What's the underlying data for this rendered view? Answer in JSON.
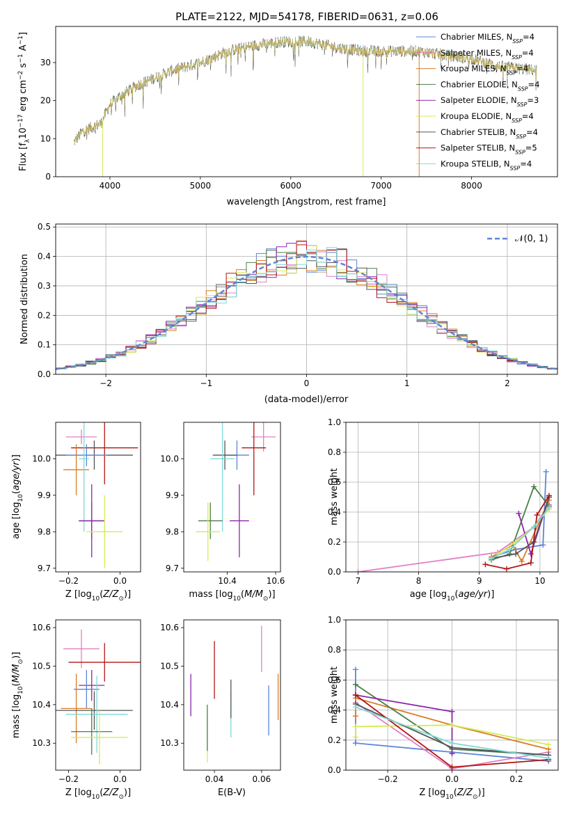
{
  "title": "PLATE=2122, MJD=54178, FIBERID=0631, z=0.06",
  "colors": {
    "Chabrier MILES": "#5b85d8",
    "Salpeter MILES": "#e07fc4",
    "Kroupa MILES": "#d97b26",
    "Chabrier ELODIE": "#4a7d49",
    "Salpeter ELODIE": "#8e24aa",
    "Kroupa ELODIE": "#d6ea54",
    "Chabrier STELIB": "#555555",
    "Salpeter STELIB": "#b21515",
    "Kroupa STELIB": "#7fd8d8",
    "normal": "#5b85d8"
  },
  "legend_ssp": [
    {
      "name": "Chabrier MILES",
      "n": "4"
    },
    {
      "name": "Salpeter MILES",
      "n": "4"
    },
    {
      "name": "Kroupa MILES",
      "n": "4"
    },
    {
      "name": "Chabrier ELODIE",
      "n": "4"
    },
    {
      "name": "Salpeter ELODIE",
      "n": "3"
    },
    {
      "name": "Kroupa ELODIE",
      "n": "4"
    },
    {
      "name": "Chabrier STELIB",
      "n": "4"
    },
    {
      "name": "Salpeter STELIB",
      "n": "5"
    },
    {
      "name": "Kroupa STELIB",
      "n": "4"
    }
  ],
  "legend_nssp_prefix": "N",
  "legend_nssp_sub": "SSP",
  "legend_normal": "𝒩(0, 1)",
  "chart_data": [
    {
      "id": "spectrum",
      "type": "line",
      "xlabel": "wavelength [Angstrom, rest frame]",
      "ylabel": "Flux [fλ10⁻¹⁷ erg cm⁻² s⁻¹ A⁻¹]",
      "xlim": [
        3400,
        8950
      ],
      "ylim": [
        0,
        39.5
      ],
      "xticks": [
        4000,
        5000,
        6000,
        7000,
        8000
      ],
      "yticks": [
        0,
        10,
        20,
        30
      ],
      "grid": false,
      "legend": "right",
      "continuum": [
        [
          3600,
          9
        ],
        [
          3700,
          12
        ],
        [
          3800,
          13
        ],
        [
          3900,
          14
        ],
        [
          4000,
          19
        ],
        [
          4100,
          21
        ],
        [
          4300,
          24
        ],
        [
          4500,
          26
        ],
        [
          4700,
          28
        ],
        [
          5000,
          30
        ],
        [
          5300,
          33
        ],
        [
          5600,
          34.5
        ],
        [
          5900,
          35.5
        ],
        [
          6200,
          35.5
        ],
        [
          6500,
          34
        ],
        [
          6800,
          33
        ],
        [
          7100,
          33
        ],
        [
          7400,
          33
        ],
        [
          7700,
          32
        ],
        [
          8000,
          31
        ],
        [
          8300,
          29
        ],
        [
          8700,
          28
        ]
      ],
      "spikes": [
        {
          "x": 3920,
          "y": 0
        },
        {
          "x": 6800,
          "y": 0
        },
        {
          "x": 7420,
          "y": 0
        }
      ]
    },
    {
      "id": "residuals",
      "type": "histogram",
      "xlabel": "(data-model)/error",
      "ylabel": "Normed distribution",
      "xlim": [
        -2.5,
        2.5
      ],
      "ylim": [
        0,
        0.51
      ],
      "xticks": [
        -2,
        -1,
        0,
        1,
        2
      ],
      "yticks": [
        0.0,
        0.1,
        0.2,
        0.3,
        0.4,
        0.5
      ],
      "grid": true,
      "legend": "top-right",
      "bin_width": 0.1
    },
    {
      "id": "age-vs-Z",
      "type": "errorbar",
      "xlabel": "Z [log10(Z/Z⊙)]",
      "ylabel": "age [log10(age/yr)]",
      "xlim": [
        -0.25,
        0.08
      ],
      "ylim": [
        9.69,
        10.1
      ],
      "xticks": [
        -0.2,
        0.0
      ],
      "yticks": [
        9.7,
        9.8,
        9.9,
        10.0
      ],
      "points": [
        {
          "s": "Salpeter MILES",
          "x": -0.15,
          "xe": 0.06,
          "y": 10.06,
          "ye": 0.02
        },
        {
          "s": "Salpeter STELIB",
          "x": -0.06,
          "xe": 0.13,
          "y": 10.03,
          "ye": 0.1
        },
        {
          "s": "Chabrier STELIB",
          "x": -0.1,
          "xe": 0.15,
          "y": 10.01,
          "ye": 0.04
        },
        {
          "s": "Chabrier MILES",
          "x": -0.13,
          "xe": 0.08,
          "y": 10.01,
          "ye": 0.03
        },
        {
          "s": "Kroupa MILES",
          "x": -0.17,
          "xe": 0.05,
          "y": 9.97,
          "ye": 0.07
        },
        {
          "s": "Kroupa STELIB",
          "x": -0.14,
          "xe": 0.02,
          "y": 10.0,
          "ye": 0.2
        },
        {
          "s": "Chabrier ELODIE",
          "x": -0.11,
          "xe": 0.05,
          "y": 9.83,
          "ye": 0.05
        },
        {
          "s": "Salpeter ELODIE",
          "x": -0.11,
          "xe": 0.05,
          "y": 9.83,
          "ye": 0.1
        },
        {
          "s": "Kroupa ELODIE",
          "x": -0.06,
          "xe": 0.07,
          "y": 9.8,
          "ye": 0.1
        }
      ]
    },
    {
      "id": "age-vs-mass",
      "type": "errorbar",
      "xlabel": "mass [log10(M/M⊙)]",
      "ylabel": "",
      "xlim": [
        10.22,
        10.62
      ],
      "ylim": [
        9.69,
        10.1
      ],
      "xticks": [
        10.4,
        10.6
      ],
      "yticks": [
        9.7,
        9.8,
        9.9,
        10.0
      ],
      "points": [
        {
          "s": "Salpeter MILES",
          "x": 10.55,
          "xe": 0.05,
          "y": 10.06,
          "ye": 0.04
        },
        {
          "s": "Salpeter STELIB",
          "x": 10.51,
          "xe": 0.05,
          "y": 10.03,
          "ye": 0.13
        },
        {
          "s": "Chabrier MILES",
          "x": 10.44,
          "xe": 0.05,
          "y": 10.01,
          "ye": 0.04
        },
        {
          "s": "Chabrier STELIB",
          "x": 10.39,
          "xe": 0.05,
          "y": 10.01,
          "ye": 0.04
        },
        {
          "s": "Kroupa STELIB",
          "x": 10.38,
          "xe": 0.05,
          "y": 10.0,
          "ye": 0.2
        },
        {
          "s": "Chabrier ELODIE",
          "x": 10.33,
          "xe": 0.05,
          "y": 9.83,
          "ye": 0.05
        },
        {
          "s": "Salpeter ELODIE",
          "x": 10.45,
          "xe": 0.04,
          "y": 9.83,
          "ye": 0.1
        },
        {
          "s": "Kroupa ELODIE",
          "x": 10.32,
          "xe": 0.05,
          "y": 9.8,
          "ye": 0.08
        }
      ]
    },
    {
      "id": "weight-vs-age",
      "type": "line",
      "xlabel": "age [log10(age/yr)]",
      "ylabel": "mass weight",
      "xlim": [
        6.8,
        10.3
      ],
      "ylim": [
        0,
        1
      ],
      "xticks": [
        7,
        8,
        9,
        10
      ],
      "yticks": [
        0.0,
        0.2,
        0.4,
        0.6,
        0.8,
        1.0
      ],
      "grid": true,
      "series": [
        {
          "s": "Salpeter MILES",
          "x": [
            7.0,
            9.3,
            9.9,
            10.15
          ],
          "y": [
            0.0,
            0.13,
            0.3,
            0.45
          ]
        },
        {
          "s": "Chabrier MILES",
          "x": [
            9.2,
            9.6,
            10.05,
            10.1
          ],
          "y": [
            0.1,
            0.15,
            0.18,
            0.67
          ]
        },
        {
          "s": "Kroupa MILES",
          "x": [
            9.2,
            9.55,
            9.7,
            10.15
          ],
          "y": [
            0.1,
            0.18,
            0.07,
            0.48
          ]
        },
        {
          "s": "Chabrier ELODIE",
          "x": [
            9.2,
            9.5,
            9.9,
            10.15
          ],
          "y": [
            0.08,
            0.12,
            0.57,
            0.44
          ]
        },
        {
          "s": "Salpeter ELODIE",
          "x": [
            9.65,
            9.85,
            10.15
          ],
          "y": [
            0.39,
            0.12,
            0.5
          ]
        },
        {
          "s": "Kroupa ELODIE",
          "x": [
            9.3,
            9.6,
            9.9,
            10.15
          ],
          "y": [
            0.12,
            0.2,
            0.3,
            0.42
          ]
        },
        {
          "s": "Chabrier STELIB",
          "x": [
            9.2,
            9.6,
            9.9,
            10.15
          ],
          "y": [
            0.09,
            0.12,
            0.2,
            0.5
          ]
        },
        {
          "s": "Salpeter STELIB",
          "x": [
            9.1,
            9.45,
            9.85,
            9.95,
            10.15
          ],
          "y": [
            0.05,
            0.02,
            0.06,
            0.38,
            0.51
          ]
        },
        {
          "s": "Kroupa STELIB",
          "x": [
            9.2,
            9.5,
            9.9,
            10.15
          ],
          "y": [
            0.09,
            0.15,
            0.3,
            0.43
          ]
        }
      ]
    },
    {
      "id": "mass-vs-Z",
      "type": "errorbar",
      "xlabel": "Z [log10(Z/Z⊙)]",
      "ylabel": "mass [log10(M/M⊙)]",
      "xlim": [
        -0.25,
        0.08
      ],
      "ylim": [
        10.23,
        10.62
      ],
      "xticks": [
        -0.2,
        0.0
      ],
      "yticks": [
        10.3,
        10.4,
        10.5,
        10.6
      ],
      "points": [
        {
          "s": "Salpeter MILES",
          "x": -0.15,
          "xe": 0.07,
          "y": 10.545,
          "ye": 0.05
        },
        {
          "s": "Salpeter STELIB",
          "x": -0.06,
          "xe": 0.14,
          "y": 10.51,
          "ye": 0.05
        },
        {
          "s": "Salpeter ELODIE",
          "x": -0.11,
          "xe": 0.05,
          "y": 10.45,
          "ye": 0.04
        },
        {
          "s": "Chabrier MILES",
          "x": -0.13,
          "xe": 0.05,
          "y": 10.44,
          "ye": 0.05
        },
        {
          "s": "Kroupa MILES",
          "x": -0.17,
          "xe": 0.06,
          "y": 10.39,
          "ye": 0.09
        },
        {
          "s": "Chabrier STELIB",
          "x": -0.1,
          "xe": 0.15,
          "y": 10.385,
          "ye": 0.05
        },
        {
          "s": "Kroupa STELIB",
          "x": -0.09,
          "xe": 0.12,
          "y": 10.375,
          "ye": 0.1
        },
        {
          "s": "Chabrier ELODIE",
          "x": -0.11,
          "xe": 0.08,
          "y": 10.33,
          "ye": 0.06
        },
        {
          "s": "Kroupa ELODIE",
          "x": -0.08,
          "xe": 0.11,
          "y": 10.315,
          "ye": 0.07
        }
      ]
    },
    {
      "id": "mass-vs-EBV",
      "type": "errorbar",
      "xlabel": "E(B-V)",
      "ylabel": "",
      "xlim": [
        0.027,
        0.068
      ],
      "ylim": [
        10.23,
        10.62
      ],
      "xticks": [
        0.04,
        0.06
      ],
      "yticks": [
        10.3,
        10.4,
        10.5,
        10.6
      ],
      "points": [
        {
          "s": "Salpeter ELODIE",
          "x": 0.03,
          "xe": 0,
          "y": 10.425,
          "ye": 0.055
        },
        {
          "s": "Kroupa ELODIE",
          "x": 0.037,
          "xe": 0,
          "y": 10.31,
          "ye": 0.06
        },
        {
          "s": "Chabrier ELODIE",
          "x": 0.037,
          "xe": 0,
          "y": 10.34,
          "ye": 0.06
        },
        {
          "s": "Salpeter STELIB",
          "x": 0.04,
          "xe": 0,
          "y": 10.49,
          "ye": 0.075
        },
        {
          "s": "Kroupa STELIB",
          "x": 0.047,
          "xe": 0,
          "y": 10.375,
          "ye": 0.06
        },
        {
          "s": "Chabrier STELIB",
          "x": 0.047,
          "xe": 0,
          "y": 10.415,
          "ye": 0.05
        },
        {
          "s": "Salpeter MILES",
          "x": 0.06,
          "xe": 0,
          "y": 10.545,
          "ye": 0.06
        },
        {
          "s": "Chabrier MILES",
          "x": 0.063,
          "xe": 0,
          "y": 10.385,
          "ye": 0.065
        },
        {
          "s": "Kroupa MILES",
          "x": 0.067,
          "xe": 0,
          "y": 10.42,
          "ye": 0.06
        }
      ]
    },
    {
      "id": "weight-vs-Z",
      "type": "line",
      "xlabel": "Z [log10(Z/Z⊙)]",
      "ylabel": "mass weight",
      "xlim": [
        -0.33,
        0.33
      ],
      "ylim": [
        0,
        1
      ],
      "xticks": [
        -0.2,
        0.0,
        0.2
      ],
      "yticks": [
        0.0,
        0.2,
        0.4,
        0.6,
        0.8,
        1.0
      ],
      "grid": true,
      "series": [
        {
          "s": "Chabrier MILES",
          "x": [
            -0.3,
            -0.3,
            0.0,
            0.3
          ],
          "y": [
            0.67,
            0.18,
            0.12,
            0.06
          ]
        },
        {
          "s": "Salpeter MILES",
          "x": [
            -0.3,
            0.0,
            0.3
          ],
          "y": [
            0.45,
            0.01,
            0.12
          ]
        },
        {
          "s": "Kroupa MILES",
          "x": [
            -0.3,
            -0.3,
            0.0,
            0.3
          ],
          "y": [
            0.36,
            0.48,
            0.3,
            0.14
          ]
        },
        {
          "s": "Chabrier ELODIE",
          "x": [
            -0.3,
            0.0,
            0.3
          ],
          "y": [
            0.57,
            0.14,
            0.1
          ]
        },
        {
          "s": "Salpeter ELODIE",
          "x": [
            -0.3,
            0.0,
            0.0
          ],
          "y": [
            0.5,
            0.39,
            0.11
          ]
        },
        {
          "s": "Kroupa ELODIE",
          "x": [
            -0.3,
            -0.3,
            0.0,
            0.3
          ],
          "y": [
            0.22,
            0.29,
            0.3,
            0.17
          ]
        },
        {
          "s": "Chabrier STELIB",
          "x": [
            -0.3,
            0.0,
            0.3
          ],
          "y": [
            0.44,
            0.15,
            0.1
          ]
        },
        {
          "s": "Salpeter STELIB",
          "x": [
            -0.3,
            0.0,
            0.3
          ],
          "y": [
            0.5,
            0.02,
            0.07
          ]
        },
        {
          "s": "Kroupa STELIB",
          "x": [
            -0.3,
            0.0,
            0.3
          ],
          "y": [
            0.42,
            0.18,
            0.08
          ]
        }
      ]
    }
  ]
}
